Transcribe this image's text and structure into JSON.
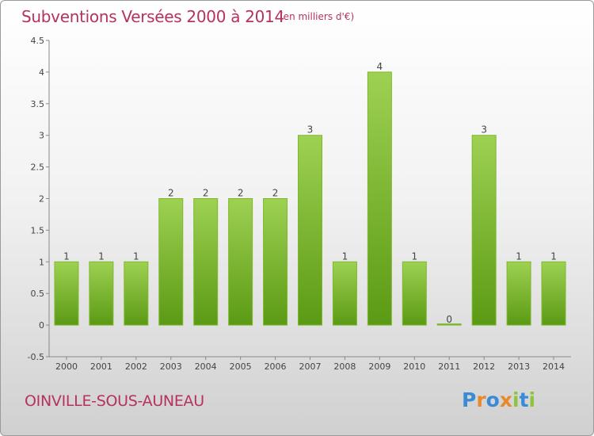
{
  "header": {
    "title": "Subventions Versées 2000 à 2014",
    "unit_note": "(en milliers d'€)"
  },
  "footer": {
    "commune": "OINVILLE-SOUS-AUNEAU",
    "logo_text": "Proxiti"
  },
  "colors": {
    "title": "#b5325f",
    "bar_top": "#9ed152",
    "bar_bottom": "#5b9a14",
    "logo_letters": [
      "#3a8bd6",
      "#e8892b",
      "#3a8bd6",
      "#e8892b",
      "#8cc63f",
      "#3a8bd6",
      "#8cc63f"
    ]
  },
  "chart_data": {
    "type": "bar",
    "categories": [
      "2000",
      "2001",
      "2002",
      "2003",
      "2004",
      "2005",
      "2006",
      "2007",
      "2008",
      "2009",
      "2010",
      "2011",
      "2012",
      "2013",
      "2014"
    ],
    "values": [
      1,
      1,
      1,
      2,
      2,
      2,
      2,
      3,
      1,
      4,
      1,
      0,
      3,
      1,
      1
    ],
    "y_ticks": [
      "-0.5",
      "0",
      "0.5",
      "1",
      "1.5",
      "2",
      "2.5",
      "3",
      "3.5",
      "4",
      "4.5"
    ],
    "ylim": [
      -0.5,
      4.5
    ],
    "grid": false,
    "legend": "none"
  }
}
